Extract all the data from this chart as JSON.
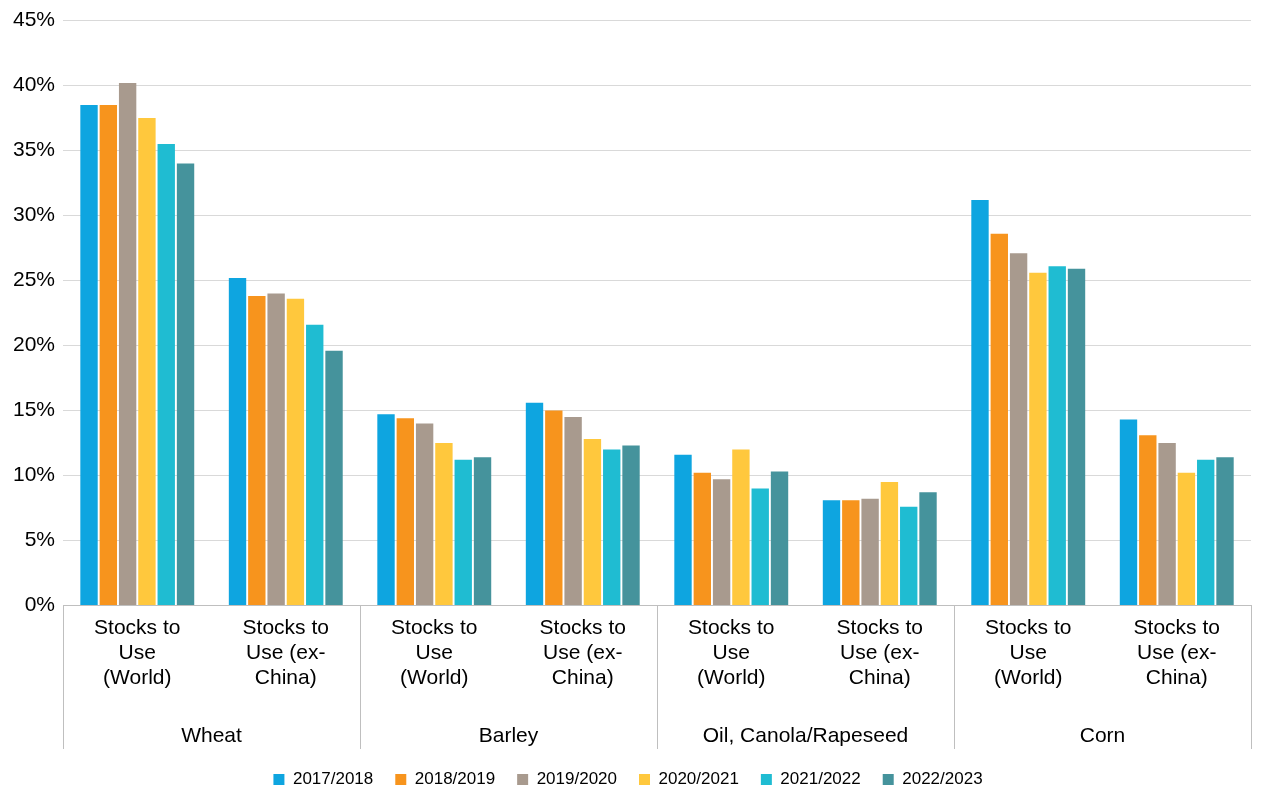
{
  "chart_data": {
    "type": "bar",
    "categories": [
      "Stocks to Use (World)",
      "Stocks to Use (ex-China)",
      "Stocks to Use (World)",
      "Stocks to Use (ex-China)",
      "Stocks to Use (World)",
      "Stocks to Use (ex-China)",
      "Stocks to Use (World)",
      "Stocks to Use (ex-China)"
    ],
    "annotations": [
      "Wheat",
      "Barley",
      "Oil, Canola/Rapeseed",
      "Corn"
    ],
    "series": [
      {
        "name": "2017/2018",
        "color": "#0ea5e0",
        "values": [
          38.5,
          25.2,
          14.7,
          15.6,
          11.6,
          8.1,
          31.2,
          14.3
        ]
      },
      {
        "name": "2018/2019",
        "color": "#f7941d",
        "values": [
          38.5,
          23.8,
          14.4,
          15.0,
          10.2,
          8.1,
          28.6,
          13.1
        ]
      },
      {
        "name": "2019/2020",
        "color": "#a89a8e",
        "values": [
          40.2,
          24.0,
          14.0,
          14.5,
          9.7,
          8.2,
          27.1,
          12.5
        ]
      },
      {
        "name": "2020/2021",
        "color": "#ffc83d",
        "values": [
          37.5,
          23.6,
          12.5,
          12.8,
          12.0,
          9.5,
          25.6,
          10.2
        ]
      },
      {
        "name": "2021/2022",
        "color": "#1fbcd2",
        "values": [
          35.5,
          21.6,
          11.2,
          12.0,
          9.0,
          7.6,
          26.1,
          11.2
        ]
      },
      {
        "name": "2022/2023",
        "color": "#45939c",
        "values": [
          34.0,
          19.6,
          11.4,
          12.3,
          10.3,
          8.7,
          25.9,
          11.4
        ]
      }
    ],
    "ylim": [
      0,
      45
    ],
    "yticks": [
      {
        "value": 0,
        "label": "0%"
      },
      {
        "value": 5,
        "label": "5%"
      },
      {
        "value": 10,
        "label": "10%"
      },
      {
        "value": 15,
        "label": "15%"
      },
      {
        "value": 20,
        "label": "20%"
      },
      {
        "value": 25,
        "label": "25%"
      },
      {
        "value": 30,
        "label": "30%"
      },
      {
        "value": 35,
        "label": "35%"
      },
      {
        "value": 40,
        "label": "40%"
      },
      {
        "value": 45,
        "label": "45%"
      }
    ],
    "grid": "y",
    "legend": "bottom"
  }
}
